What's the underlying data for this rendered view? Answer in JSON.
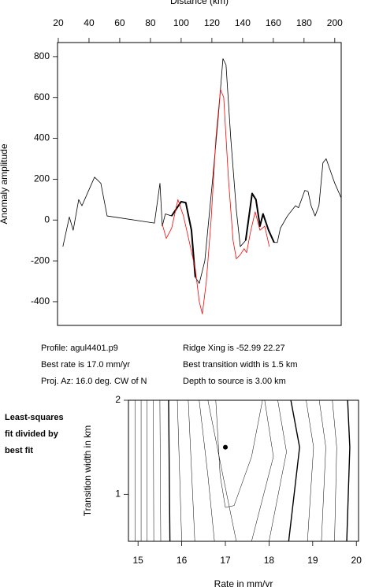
{
  "chart_data": [
    {
      "type": "line",
      "xlabel": "Distance (km)",
      "ylabel": "Anomaly amplitude",
      "xaxis_position": "top",
      "xlim": [
        19.5,
        204.2
      ],
      "ylim": [
        -516,
        869
      ],
      "xticks": [
        20,
        40,
        60,
        80,
        100,
        120,
        140,
        160,
        180,
        200
      ],
      "yticks": [
        -400,
        -200,
        0,
        200,
        400,
        600,
        800
      ],
      "series": [
        {
          "color": "#000000",
          "line_width": 0.8,
          "x": [
            23,
            27.2,
            29.7,
            33.3,
            35.4,
            43.6,
            47.7,
            51.8,
            82.6,
            86.2,
            87.7,
            89.7,
            93.8,
            100,
            103,
            106.7,
            109.2,
            111.8,
            115.4,
            120.5,
            124.1,
            127.2,
            129.2,
            132.3,
            135.9,
            138.5,
            142,
            146.2,
            148.7,
            151.3,
            153.3,
            156.9,
            160.5,
            162.6,
            164.6,
            169.2,
            174.4,
            176.4,
            180.5,
            182.6,
            184.6,
            187.2,
            189.7,
            192.3,
            194.4,
            200,
            204.1
          ],
          "values": [
            -130,
            15,
            -50,
            100,
            70,
            210,
            180,
            20,
            -15,
            180,
            -30,
            30,
            20,
            90,
            85,
            -50,
            -280,
            -310,
            -200,
            200,
            500,
            790,
            760,
            400,
            50,
            -130,
            -100,
            130,
            100,
            -30,
            30,
            -50,
            -110,
            -110,
            -40,
            20,
            70,
            60,
            145,
            140,
            70,
            20,
            70,
            280,
            300,
            180,
            110
          ]
        },
        {
          "color": "#000000",
          "line_width": 2,
          "x": [
            93.8,
            100,
            103,
            106.7,
            109.2,
            125,
            142,
            146.2,
            148.7,
            151.3,
            153.3,
            156.9,
            160.5
          ],
          "values": [
            20,
            90,
            85,
            -50,
            -280,
            null,
            -100,
            130,
            100,
            -30,
            30,
            -50,
            -110
          ]
        },
        {
          "color": "#ff0000",
          "line_width": 0.8,
          "x": [
            87.7,
            90.3,
            93.8,
            97.9,
            101.5,
            105.1,
            109.2,
            111.8,
            113.8,
            116.4,
            119.5,
            122.6,
            125.6,
            127.7,
            130.8,
            133.8,
            135.9,
            138.5,
            141,
            142.6,
            145.1,
            148.2,
            151.3,
            154.4,
            157.4
          ],
          "values": [
            -20,
            -90,
            -40,
            100,
            20,
            -100,
            -240,
            -400,
            -460,
            -300,
            0,
            400,
            640,
            600,
            200,
            -100,
            -190,
            -170,
            -140,
            -160,
            -60,
            40,
            -50,
            -30,
            -130
          ]
        }
      ]
    },
    {
      "type": "contour",
      "xlabel": "Rate in mm/yr",
      "ylabel": "Transition width in km",
      "side_label": [
        "Least-squares",
        "fit divided by",
        "best fit"
      ],
      "xlim": [
        14.78,
        20.05
      ],
      "ylim": [
        0.5,
        2
      ],
      "xticks": [
        15,
        16,
        17,
        18,
        19,
        20
      ],
      "yticks": [
        1,
        2
      ],
      "contours": [
        {
          "bold": false,
          "x": [
            14.93,
            14.93
          ],
          "y": [
            2,
            0.5
          ]
        },
        {
          "bold": false,
          "x": [
            15.07,
            15.07
          ],
          "y": [
            2,
            0.5
          ]
        },
        {
          "bold": false,
          "x": [
            15.2,
            15.2
          ],
          "y": [
            2,
            0.5
          ]
        },
        {
          "bold": false,
          "x": [
            15.35,
            15.36
          ],
          "y": [
            2,
            0.5
          ]
        },
        {
          "bold": false,
          "x": [
            15.5,
            15.52
          ],
          "y": [
            2,
            0.5
          ]
        },
        {
          "bold": true,
          "x": [
            15.7,
            15.73
          ],
          "y": [
            2,
            0.5
          ]
        },
        {
          "bold": false,
          "x": [
            15.9,
            16.0
          ],
          "y": [
            2,
            0.5
          ]
        },
        {
          "bold": false,
          "x": [
            16.15,
            16.3
          ],
          "y": [
            2,
            0.5
          ]
        },
        {
          "bold": false,
          "x": [
            16.4,
            16.6,
            16.75
          ],
          "y": [
            2,
            1.2,
            0.5
          ]
        },
        {
          "bold": false,
          "x": [
            16.6,
            16.9,
            17.25
          ],
          "y": [
            2,
            1.3,
            0.5
          ]
        },
        {
          "bold": false,
          "x": [
            16.78,
            16.88,
            17.0,
            17.2,
            17.6,
            17.85
          ],
          "y": [
            2,
            1.2,
            0.86,
            0.88,
            1.4,
            2
          ]
        },
        {
          "bold": false,
          "x": [
            17.9,
            18.1,
            17.6
          ],
          "y": [
            2,
            1.4,
            0.5
          ]
        },
        {
          "bold": false,
          "x": [
            18.2,
            18.4,
            18.0
          ],
          "y": [
            2,
            1.45,
            0.5
          ]
        },
        {
          "bold": true,
          "x": [
            18.5,
            18.7,
            18.45
          ],
          "y": [
            2,
            1.5,
            0.5
          ]
        },
        {
          "bold": false,
          "x": [
            18.85,
            19.02,
            18.88
          ],
          "y": [
            2,
            1.5,
            0.5
          ]
        },
        {
          "bold": false,
          "x": [
            19.15,
            19.3,
            19.2
          ],
          "y": [
            2,
            1.5,
            0.5
          ]
        },
        {
          "bold": false,
          "x": [
            19.45,
            19.55,
            19.5
          ],
          "y": [
            2,
            1.5,
            0.5
          ]
        },
        {
          "bold": true,
          "x": [
            19.8,
            19.85,
            19.78
          ],
          "y": [
            2,
            1.5,
            0.5
          ]
        }
      ],
      "points": {
        "color": "#000000",
        "x": [
          17
        ],
        "y": [
          1.5
        ]
      }
    }
  ],
  "annotations": {
    "left": [
      "Profile: agul4401.p9",
      "Best rate is 17.0 mm/yr",
      "Proj. Az: 16.0 deg. CW of N"
    ],
    "right": [
      "Ridge Xing is -52.99 22.27",
      "Best transition width is 1.5 km",
      "Depth to source is   3.00 km"
    ]
  }
}
